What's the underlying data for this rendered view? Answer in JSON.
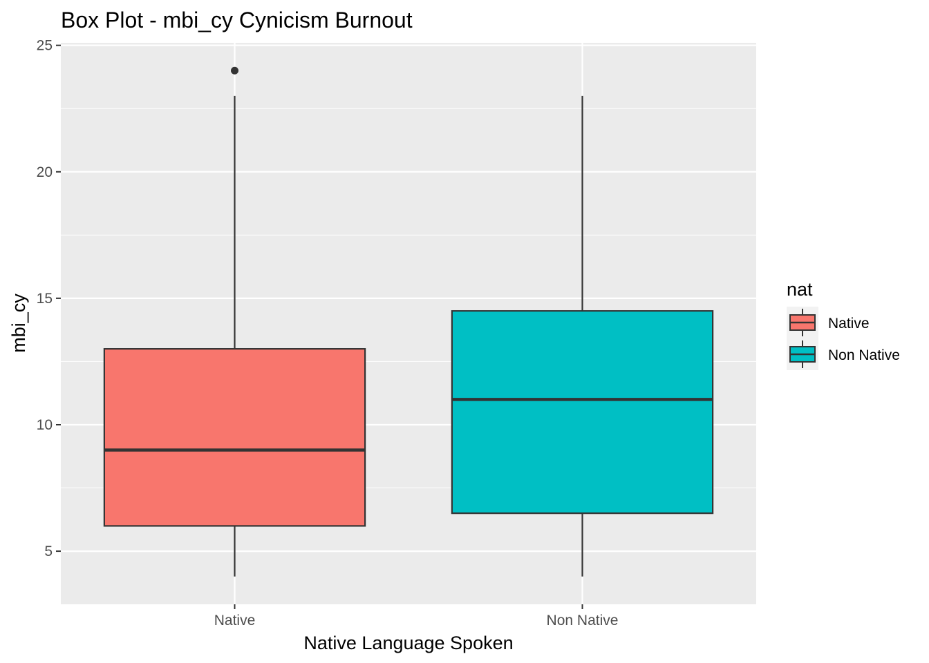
{
  "chart_data": {
    "type": "boxplot",
    "title": "Box Plot - mbi_cy Cynicism Burnout",
    "xlabel": "Native Language Spoken",
    "ylabel": "mbi_cy",
    "ylim": [
      2.9,
      25.1
    ],
    "yticks": [
      5,
      10,
      15,
      20,
      25
    ],
    "grid": true,
    "legend": {
      "title": "nat",
      "placement": "right"
    },
    "categories": [
      "Native",
      "Non Native"
    ],
    "series": [
      {
        "name": "Native",
        "color": "#F8766D",
        "min": 4,
        "q1": 6,
        "median": 9,
        "q3": 13,
        "max": 23,
        "outliers": [
          24
        ]
      },
      {
        "name": "Non Native",
        "color": "#00BFC4",
        "min": 4,
        "q1": 6.5,
        "median": 11,
        "q3": 14.5,
        "max": 23,
        "outliers": []
      }
    ]
  }
}
